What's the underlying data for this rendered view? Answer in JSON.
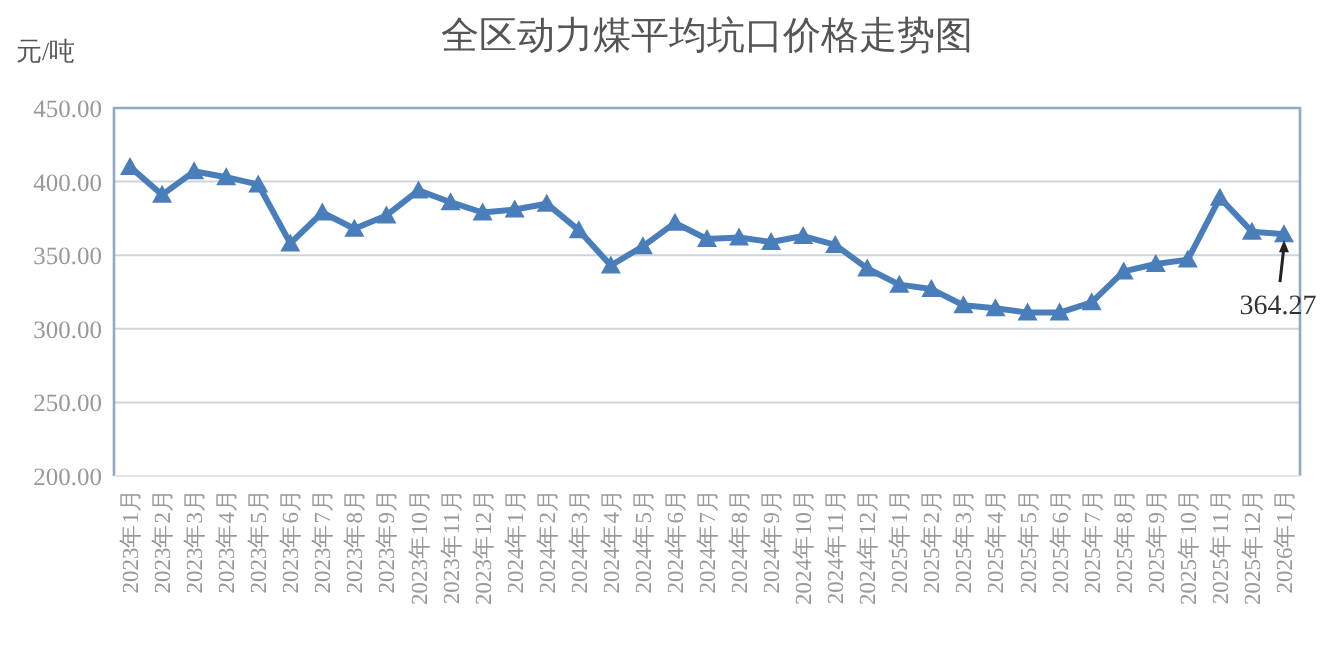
{
  "chart_data": {
    "type": "line",
    "title": "全区动力煤平均坑口价格走势图",
    "ylabel": "元/吨",
    "categories": [
      "2023年1月",
      "2023年2月",
      "2023年3月",
      "2023年4月",
      "2023年5月",
      "2023年6月",
      "2023年7月",
      "2023年8月",
      "2023年9月",
      "2023年10月",
      "2023年11月",
      "2023年12月",
      "2024年1月",
      "2024年2月",
      "2024年3月",
      "2024年4月",
      "2024年5月",
      "2024年6月",
      "2024年7月",
      "2024年8月",
      "2024年9月",
      "2024年10月",
      "2024年11月",
      "2024年12月",
      "2025年1月",
      "2025年2月",
      "2025年3月",
      "2025年4月",
      "2025年5月",
      "2025年6月",
      "2025年7月",
      "2025年8月",
      "2025年9月",
      "2025年10月",
      "2025年11月",
      "2025年12月",
      "2026年1月"
    ],
    "series": [
      {
        "color": "#4a7ebb",
        "values": [
          410,
          391,
          407,
          403,
          398,
          358,
          379,
          368,
          377,
          394,
          386,
          379,
          381,
          385,
          367,
          343,
          356,
          372,
          361,
          362,
          359,
          363,
          357,
          341,
          330,
          327,
          316,
          314,
          311,
          311,
          318,
          339,
          344,
          347,
          389,
          366,
          364.27
        ]
      }
    ],
    "ylim": [
      200,
      450
    ],
    "yticks": [
      {
        "value": 200,
        "label": "200.00"
      },
      {
        "value": 250,
        "label": "250.00"
      },
      {
        "value": 300,
        "label": "300.00"
      },
      {
        "value": 350,
        "label": "350.00"
      },
      {
        "value": 400,
        "label": "400.00"
      },
      {
        "value": 450,
        "label": "450.00"
      }
    ],
    "grid": "y",
    "marker": "triangle",
    "line_style": "solid",
    "annotations": [
      {
        "text": "364.27",
        "x": "2026年1月",
        "y": 364.27
      }
    ]
  }
}
